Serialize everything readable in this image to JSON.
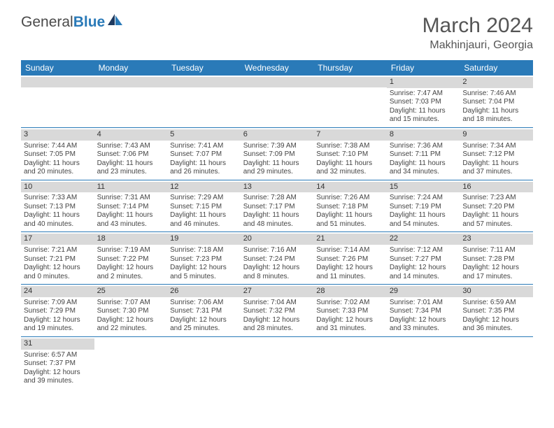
{
  "logo": {
    "text1": "General",
    "text2": "Blue"
  },
  "title": "March 2024",
  "location": "Makhinjauri, Georgia",
  "headerColor": "#2a7ab8",
  "dateBgColor": "#d9d9d9",
  "days": [
    "Sunday",
    "Monday",
    "Tuesday",
    "Wednesday",
    "Thursday",
    "Friday",
    "Saturday"
  ],
  "weeks": [
    [
      null,
      null,
      null,
      null,
      null,
      {
        "n": "1",
        "sr": "Sunrise: 7:47 AM",
        "ss": "Sunset: 7:03 PM",
        "d1": "Daylight: 11 hours",
        "d2": "and 15 minutes."
      },
      {
        "n": "2",
        "sr": "Sunrise: 7:46 AM",
        "ss": "Sunset: 7:04 PM",
        "d1": "Daylight: 11 hours",
        "d2": "and 18 minutes."
      }
    ],
    [
      {
        "n": "3",
        "sr": "Sunrise: 7:44 AM",
        "ss": "Sunset: 7:05 PM",
        "d1": "Daylight: 11 hours",
        "d2": "and 20 minutes."
      },
      {
        "n": "4",
        "sr": "Sunrise: 7:43 AM",
        "ss": "Sunset: 7:06 PM",
        "d1": "Daylight: 11 hours",
        "d2": "and 23 minutes."
      },
      {
        "n": "5",
        "sr": "Sunrise: 7:41 AM",
        "ss": "Sunset: 7:07 PM",
        "d1": "Daylight: 11 hours",
        "d2": "and 26 minutes."
      },
      {
        "n": "6",
        "sr": "Sunrise: 7:39 AM",
        "ss": "Sunset: 7:09 PM",
        "d1": "Daylight: 11 hours",
        "d2": "and 29 minutes."
      },
      {
        "n": "7",
        "sr": "Sunrise: 7:38 AM",
        "ss": "Sunset: 7:10 PM",
        "d1": "Daylight: 11 hours",
        "d2": "and 32 minutes."
      },
      {
        "n": "8",
        "sr": "Sunrise: 7:36 AM",
        "ss": "Sunset: 7:11 PM",
        "d1": "Daylight: 11 hours",
        "d2": "and 34 minutes."
      },
      {
        "n": "9",
        "sr": "Sunrise: 7:34 AM",
        "ss": "Sunset: 7:12 PM",
        "d1": "Daylight: 11 hours",
        "d2": "and 37 minutes."
      }
    ],
    [
      {
        "n": "10",
        "sr": "Sunrise: 7:33 AM",
        "ss": "Sunset: 7:13 PM",
        "d1": "Daylight: 11 hours",
        "d2": "and 40 minutes."
      },
      {
        "n": "11",
        "sr": "Sunrise: 7:31 AM",
        "ss": "Sunset: 7:14 PM",
        "d1": "Daylight: 11 hours",
        "d2": "and 43 minutes."
      },
      {
        "n": "12",
        "sr": "Sunrise: 7:29 AM",
        "ss": "Sunset: 7:15 PM",
        "d1": "Daylight: 11 hours",
        "d2": "and 46 minutes."
      },
      {
        "n": "13",
        "sr": "Sunrise: 7:28 AM",
        "ss": "Sunset: 7:17 PM",
        "d1": "Daylight: 11 hours",
        "d2": "and 48 minutes."
      },
      {
        "n": "14",
        "sr": "Sunrise: 7:26 AM",
        "ss": "Sunset: 7:18 PM",
        "d1": "Daylight: 11 hours",
        "d2": "and 51 minutes."
      },
      {
        "n": "15",
        "sr": "Sunrise: 7:24 AM",
        "ss": "Sunset: 7:19 PM",
        "d1": "Daylight: 11 hours",
        "d2": "and 54 minutes."
      },
      {
        "n": "16",
        "sr": "Sunrise: 7:23 AM",
        "ss": "Sunset: 7:20 PM",
        "d1": "Daylight: 11 hours",
        "d2": "and 57 minutes."
      }
    ],
    [
      {
        "n": "17",
        "sr": "Sunrise: 7:21 AM",
        "ss": "Sunset: 7:21 PM",
        "d1": "Daylight: 12 hours",
        "d2": "and 0 minutes."
      },
      {
        "n": "18",
        "sr": "Sunrise: 7:19 AM",
        "ss": "Sunset: 7:22 PM",
        "d1": "Daylight: 12 hours",
        "d2": "and 2 minutes."
      },
      {
        "n": "19",
        "sr": "Sunrise: 7:18 AM",
        "ss": "Sunset: 7:23 PM",
        "d1": "Daylight: 12 hours",
        "d2": "and 5 minutes."
      },
      {
        "n": "20",
        "sr": "Sunrise: 7:16 AM",
        "ss": "Sunset: 7:24 PM",
        "d1": "Daylight: 12 hours",
        "d2": "and 8 minutes."
      },
      {
        "n": "21",
        "sr": "Sunrise: 7:14 AM",
        "ss": "Sunset: 7:26 PM",
        "d1": "Daylight: 12 hours",
        "d2": "and 11 minutes."
      },
      {
        "n": "22",
        "sr": "Sunrise: 7:12 AM",
        "ss": "Sunset: 7:27 PM",
        "d1": "Daylight: 12 hours",
        "d2": "and 14 minutes."
      },
      {
        "n": "23",
        "sr": "Sunrise: 7:11 AM",
        "ss": "Sunset: 7:28 PM",
        "d1": "Daylight: 12 hours",
        "d2": "and 17 minutes."
      }
    ],
    [
      {
        "n": "24",
        "sr": "Sunrise: 7:09 AM",
        "ss": "Sunset: 7:29 PM",
        "d1": "Daylight: 12 hours",
        "d2": "and 19 minutes."
      },
      {
        "n": "25",
        "sr": "Sunrise: 7:07 AM",
        "ss": "Sunset: 7:30 PM",
        "d1": "Daylight: 12 hours",
        "d2": "and 22 minutes."
      },
      {
        "n": "26",
        "sr": "Sunrise: 7:06 AM",
        "ss": "Sunset: 7:31 PM",
        "d1": "Daylight: 12 hours",
        "d2": "and 25 minutes."
      },
      {
        "n": "27",
        "sr": "Sunrise: 7:04 AM",
        "ss": "Sunset: 7:32 PM",
        "d1": "Daylight: 12 hours",
        "d2": "and 28 minutes."
      },
      {
        "n": "28",
        "sr": "Sunrise: 7:02 AM",
        "ss": "Sunset: 7:33 PM",
        "d1": "Daylight: 12 hours",
        "d2": "and 31 minutes."
      },
      {
        "n": "29",
        "sr": "Sunrise: 7:01 AM",
        "ss": "Sunset: 7:34 PM",
        "d1": "Daylight: 12 hours",
        "d2": "and 33 minutes."
      },
      {
        "n": "30",
        "sr": "Sunrise: 6:59 AM",
        "ss": "Sunset: 7:35 PM",
        "d1": "Daylight: 12 hours",
        "d2": "and 36 minutes."
      }
    ],
    [
      {
        "n": "31",
        "sr": "Sunrise: 6:57 AM",
        "ss": "Sunset: 7:37 PM",
        "d1": "Daylight: 12 hours",
        "d2": "and 39 minutes."
      },
      null,
      null,
      null,
      null,
      null,
      null
    ]
  ]
}
